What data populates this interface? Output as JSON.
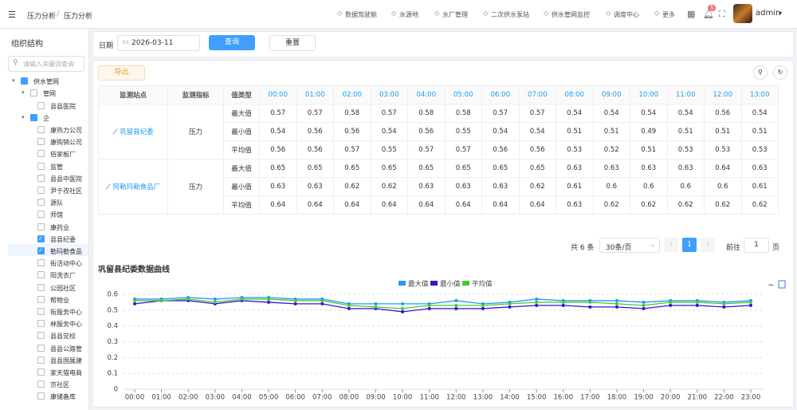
{
  "header": {
    "breadcrumb": [
      "压力分析",
      "压力分析"
    ],
    "nav": [
      "数据驾驶舱",
      "水源地",
      "水厂管理",
      "二次供水泵站",
      "供水管网监控",
      "调度中心",
      "更多"
    ],
    "badge": 5,
    "user": "admin"
  },
  "sidebar": {
    "title": "组织结构",
    "search_placeholder": "请输入关键词查询",
    "tree": [
      {
        "label": "供水管网",
        "level": 0,
        "checked": "partial"
      },
      {
        "label": "管网",
        "level": 1,
        "checked": false
      },
      {
        "label": "县县医院",
        "level": 2,
        "checked": false
      },
      {
        "label": "企",
        "level": 1,
        "checked": "partial"
      },
      {
        "label": "康热力公司",
        "level": 2,
        "checked": false
      },
      {
        "label": "康购销公司",
        "level": 2,
        "checked": false
      },
      {
        "label": "俗家板厂",
        "level": 2,
        "checked": false
      },
      {
        "label": "监管",
        "level": 2,
        "checked": false
      },
      {
        "label": "县县中医院",
        "level": 2,
        "checked": false
      },
      {
        "label": "尹于孜社区",
        "level": 2,
        "checked": false
      },
      {
        "label": "源队",
        "level": 2,
        "checked": false
      },
      {
        "label": "师馆",
        "level": 2,
        "checked": false
      },
      {
        "label": "康药业",
        "level": 2,
        "checked": false
      },
      {
        "label": "县县纪委",
        "level": 2,
        "checked": true
      },
      {
        "label": "勒玛勒食品",
        "level": 2,
        "checked": true
      },
      {
        "label": "街活动中心",
        "level": 2,
        "checked": false
      },
      {
        "label": "阳洗衣厂",
        "level": 2,
        "checked": false
      },
      {
        "label": "公园社区",
        "level": 2,
        "checked": false
      },
      {
        "label": "帮物业",
        "level": 2,
        "checked": false
      },
      {
        "label": "街服务中心",
        "level": 2,
        "checked": false
      },
      {
        "label": "林服务中心",
        "level": 2,
        "checked": false
      },
      {
        "label": "县县党校",
        "level": 2,
        "checked": false
      },
      {
        "label": "县县公路管",
        "level": 2,
        "checked": false
      },
      {
        "label": "县县国展建",
        "level": 2,
        "checked": false
      },
      {
        "label": "家天猫电商",
        "level": 2,
        "checked": false
      },
      {
        "label": "京社区",
        "level": 2,
        "checked": false
      },
      {
        "label": "康储备库",
        "level": 2,
        "checked": false
      }
    ]
  },
  "filter": {
    "date_label": "日期",
    "date": "2026-03-11",
    "query": "查询",
    "reset": "重置"
  },
  "export": "导出",
  "table": {
    "headers": [
      "监测站点",
      "监测指标",
      "值类型"
    ],
    "hours": [
      "00:00",
      "01:00",
      "02:00",
      "03:00",
      "04:00",
      "05:00",
      "06:00",
      "07:00",
      "08:00",
      "09:00",
      "10:00",
      "11:00",
      "12:00",
      "13:00"
    ],
    "groups": [
      {
        "station": "巩留县纪委",
        "indicator": "压力",
        "rows": [
          {
            "type": "最大值",
            "values": [
              0.57,
              0.57,
              0.58,
              0.57,
              0.58,
              0.58,
              0.57,
              0.57,
              0.54,
              0.54,
              0.54,
              0.54,
              0.56,
              0.54
            ]
          },
          {
            "type": "最小值",
            "values": [
              0.54,
              0.56,
              0.56,
              0.54,
              0.56,
              0.55,
              0.54,
              0.54,
              0.51,
              0.51,
              0.49,
              0.51,
              0.51,
              0.51
            ]
          },
          {
            "type": "平均值",
            "values": [
              0.56,
              0.56,
              0.57,
              0.55,
              0.57,
              0.57,
              0.56,
              0.56,
              0.53,
              0.52,
              0.51,
              0.53,
              0.53,
              0.53
            ]
          }
        ]
      },
      {
        "station": "阿勒玛勒食品厂",
        "indicator": "压力",
        "rows": [
          {
            "type": "最大值",
            "values": [
              0.65,
              0.65,
              0.65,
              0.65,
              0.65,
              0.65,
              0.65,
              0.65,
              0.63,
              0.63,
              0.63,
              0.63,
              0.64,
              0.63
            ]
          },
          {
            "type": "最小值",
            "values": [
              0.63,
              0.63,
              0.62,
              0.62,
              0.63,
              0.63,
              0.63,
              0.62,
              0.61,
              0.6,
              0.6,
              0.6,
              0.6,
              0.61
            ]
          },
          {
            "type": "平均值",
            "values": [
              0.64,
              0.64,
              0.64,
              0.64,
              0.64,
              0.64,
              0.64,
              0.64,
              0.63,
              0.62,
              0.62,
              0.62,
              0.62,
              0.62
            ]
          }
        ]
      }
    ]
  },
  "pagination": {
    "total": "共 6 条",
    "page_size": "30条/页",
    "page": 1,
    "goto": "前往",
    "goto_value": 1,
    "unit": "页"
  },
  "chart_data": {
    "type": "line",
    "title": "巩留县纪委数据曲线",
    "categories": [
      "00:00",
      "01:00",
      "02:00",
      "03:00",
      "04:00",
      "05:00",
      "06:00",
      "07:00",
      "08:00",
      "09:00",
      "10:00",
      "11:00",
      "12:00",
      "13:00",
      "14:00",
      "15:00",
      "16:00",
      "17:00",
      "18:00",
      "19:00",
      "20:00",
      "21:00",
      "22:00",
      "23:00"
    ],
    "series": [
      {
        "name": "最大值",
        "color": "#1e9bf0",
        "values": [
          0.57,
          0.57,
          0.58,
          0.57,
          0.58,
          0.58,
          0.57,
          0.57,
          0.54,
          0.54,
          0.54,
          0.54,
          0.56,
          0.54,
          0.55,
          0.57,
          0.56,
          0.56,
          0.56,
          0.55,
          0.56,
          0.56,
          0.55,
          0.56
        ]
      },
      {
        "name": "最小值",
        "color": "#3a12c9",
        "values": [
          0.54,
          0.56,
          0.56,
          0.54,
          0.56,
          0.55,
          0.54,
          0.54,
          0.51,
          0.51,
          0.49,
          0.51,
          0.51,
          0.51,
          0.52,
          0.53,
          0.53,
          0.52,
          0.52,
          0.51,
          0.53,
          0.53,
          0.52,
          0.53
        ]
      },
      {
        "name": "平均值",
        "color": "#4cc63c",
        "values": [
          0.56,
          0.56,
          0.57,
          0.55,
          0.57,
          0.57,
          0.56,
          0.56,
          0.53,
          0.52,
          0.51,
          0.53,
          0.53,
          0.53,
          0.54,
          0.55,
          0.55,
          0.55,
          0.54,
          0.53,
          0.55,
          0.55,
          0.54,
          0.55
        ]
      }
    ],
    "ylim": [
      0,
      0.6
    ],
    "yticks": [
      0,
      0.1,
      0.2,
      0.3,
      0.4,
      0.5,
      0.6
    ],
    "grid": true
  }
}
